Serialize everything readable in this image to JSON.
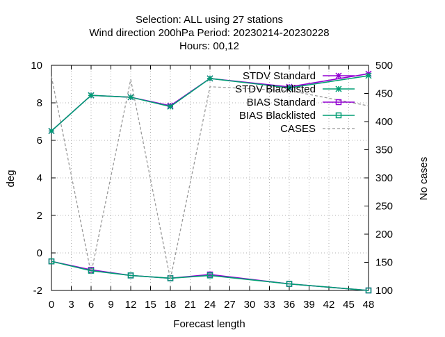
{
  "chart_data": {
    "type": "line",
    "title": [
      "Selection: ALL using    27 stations",
      "Wind direction 200hPa   Period: 20230214-20230228",
      "Hours:  00,12"
    ],
    "xlabel": "Forecast length",
    "ylabel": "deg",
    "y2label": "No cases",
    "xlim": [
      0,
      48
    ],
    "ylim": [
      -2,
      10
    ],
    "y2lim": [
      100,
      500
    ],
    "xticks": [
      0,
      3,
      6,
      9,
      12,
      15,
      18,
      21,
      24,
      27,
      30,
      33,
      36,
      39,
      42,
      45,
      48
    ],
    "yticks": [
      -2,
      0,
      2,
      4,
      6,
      8,
      10
    ],
    "y2ticks": [
      100,
      150,
      200,
      250,
      300,
      350,
      400,
      450,
      500
    ],
    "grid": true,
    "legend_position": "top-right",
    "x": [
      0,
      6,
      12,
      18,
      24,
      36,
      48
    ],
    "series": [
      {
        "name": "STDV Standard",
        "axis": "y1",
        "color": "#9400d3",
        "marker": "star",
        "dash": "solid",
        "values": [
          6.5,
          8.4,
          8.3,
          7.85,
          9.3,
          8.85,
          9.55
        ]
      },
      {
        "name": "STDV Blacklisted",
        "axis": "y1",
        "color": "#009e73",
        "marker": "star",
        "dash": "solid",
        "values": [
          6.5,
          8.4,
          8.3,
          7.8,
          9.3,
          8.8,
          9.45
        ]
      },
      {
        "name": "BIAS Standard",
        "axis": "y1",
        "color": "#9400d3",
        "marker": "square",
        "dash": "solid",
        "values": [
          -0.45,
          -0.9,
          -1.2,
          -1.35,
          -1.15,
          -1.65,
          -2.0
        ]
      },
      {
        "name": "BIAS Blacklisted",
        "axis": "y1",
        "color": "#009e73",
        "marker": "square",
        "dash": "solid",
        "values": [
          -0.45,
          -0.95,
          -1.2,
          -1.35,
          -1.2,
          -1.65,
          -2.0
        ]
      },
      {
        "name": "CASES",
        "axis": "y2",
        "color": "#999999",
        "marker": "none",
        "dash": "dashed",
        "values": [
          480,
          130,
          475,
          120,
          462,
          455,
          428
        ]
      }
    ]
  }
}
